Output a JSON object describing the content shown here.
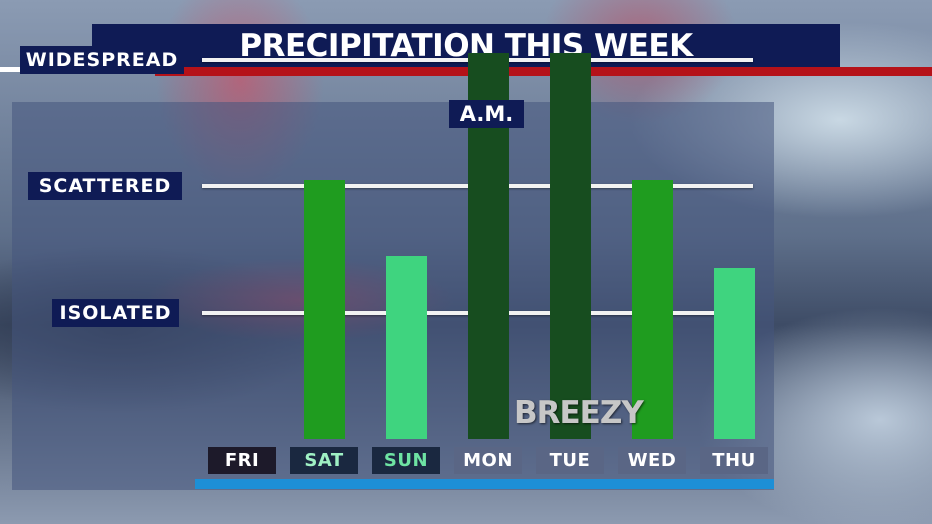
{
  "header": {
    "title": "PRECIPITATION THIS WEEK"
  },
  "chart_data": {
    "type": "bar",
    "title": "PRECIPITATION THIS WEEK",
    "categories": [
      "FRI",
      "SAT",
      "SUN",
      "MON",
      "TUE",
      "WED",
      "THU"
    ],
    "values": [
      0,
      2.05,
      1.45,
      3.05,
      3.05,
      2.05,
      1.35
    ],
    "y_levels": [
      {
        "label": "ISOLATED",
        "value": 1
      },
      {
        "label": "SCATTERED",
        "value": 2
      },
      {
        "label": "WIDESPREAD",
        "value": 3
      }
    ],
    "ylim": [
      0,
      3.1
    ],
    "bar_colors": [
      "#1f9c1f",
      "#1f9c1f",
      "#3fd47f",
      "#174d1f",
      "#174d1f",
      "#1f9c1f",
      "#3fd47f"
    ],
    "day_label_bg": [
      "#1d1a2a",
      "#1a2840",
      "#1a2840",
      "#5a6685",
      "#5a6685",
      "#5a6685",
      "#5a6685"
    ],
    "day_label_color": [
      "#ffffff",
      "#9ff0c4",
      "#6ee3a3",
      "#ffffff",
      "#ffffff",
      "#ffffff",
      "#ffffff"
    ],
    "annotations": {
      "am": "A.M.",
      "breezy": "BREEZY"
    },
    "grid": true,
    "legend": "none"
  }
}
